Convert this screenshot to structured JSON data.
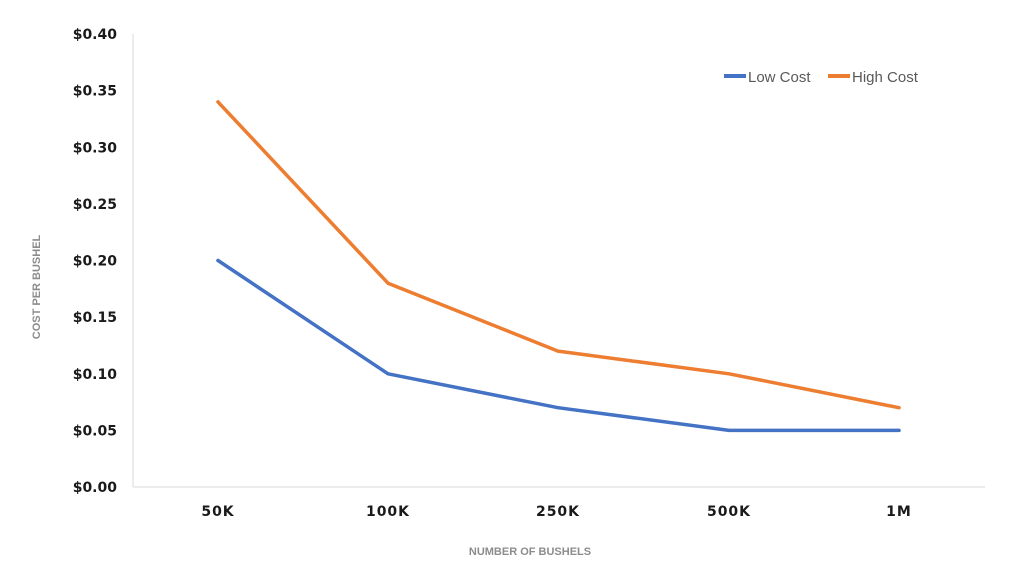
{
  "chart_data": {
    "type": "line",
    "title": "",
    "xlabel": "NUMBER OF BUSHELS",
    "ylabel": "COST PER BUSHEL",
    "categories": [
      "50K",
      "100K",
      "250K",
      "500K",
      "1M"
    ],
    "ylim": [
      0,
      0.4
    ],
    "yticks": [
      0.0,
      0.05,
      0.1,
      0.15,
      0.2,
      0.25,
      0.3,
      0.35,
      0.4
    ],
    "ytick_labels": [
      "$0.00",
      "$0.05",
      "$0.10",
      "$0.15",
      "$0.20",
      "$0.25",
      "$0.30",
      "$0.35",
      "$0.40"
    ],
    "grid": false,
    "legend_position": "top-right",
    "series": [
      {
        "name": "Low Cost",
        "color": "#4472c4",
        "values": [
          0.2,
          0.1,
          0.07,
          0.05,
          0.05
        ]
      },
      {
        "name": "High Cost",
        "color": "#ed7d31",
        "values": [
          0.34,
          0.18,
          0.12,
          0.1,
          0.07
        ]
      }
    ]
  }
}
